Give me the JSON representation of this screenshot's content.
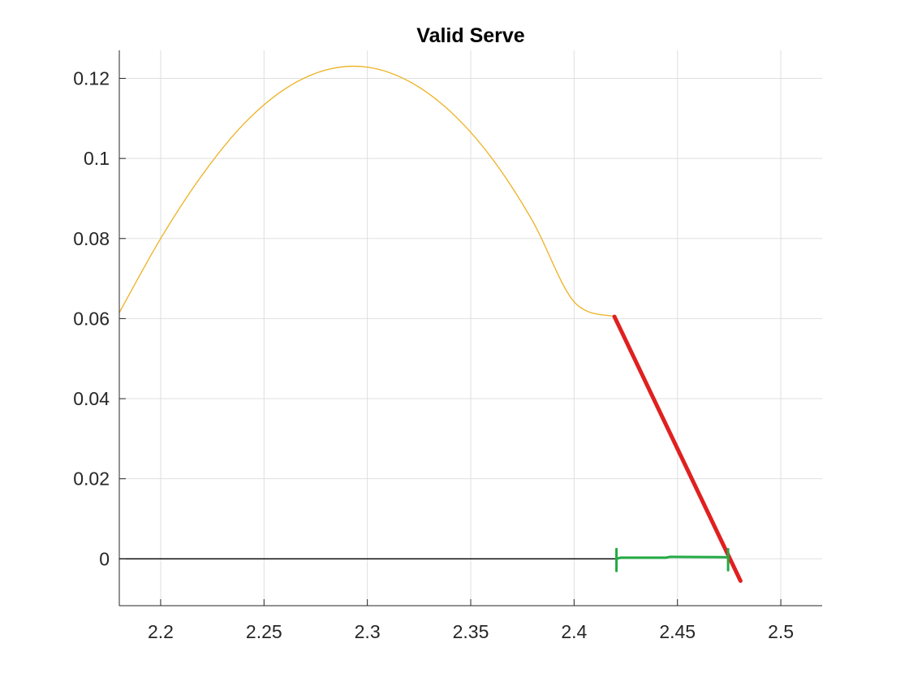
{
  "chart_data": {
    "type": "line",
    "title": "Valid Serve",
    "xlabel": "",
    "ylabel": "",
    "xlim": [
      2.18,
      2.52
    ],
    "ylim": [
      -0.0117,
      0.127
    ],
    "grid": true,
    "x_ticks": [
      "2.2",
      "2.25",
      "2.3",
      "2.35",
      "2.4",
      "2.45",
      "2.5"
    ],
    "x_tick_values": [
      2.2,
      2.25,
      2.3,
      2.35,
      2.4,
      2.45,
      2.5
    ],
    "y_ticks": [
      "0",
      "0.02",
      "0.04",
      "0.06",
      "0.08",
      "0.1",
      "0.12"
    ],
    "y_tick_values": [
      0,
      0.02,
      0.04,
      0.06,
      0.08,
      0.1,
      0.12
    ],
    "series": [
      {
        "color": "#EDB120",
        "style": "thin-line",
        "x": [
          2.18,
          2.2,
          2.22,
          2.24,
          2.26,
          2.28,
          2.3,
          2.32,
          2.34,
          2.36,
          2.38,
          2.4,
          2.42
        ],
        "y": [
          0.0615,
          0.08,
          0.0958,
          0.1085,
          0.1173,
          0.1221,
          0.1228,
          0.1193,
          0.1118,
          0.1002,
          0.0843,
          0.0642,
          0.0605
        ]
      },
      {
        "color": "#E02020",
        "style": "thick-line",
        "x": [
          2.4195,
          2.4805
        ],
        "y": [
          0.0605,
          -0.0055
        ]
      },
      {
        "color": "#000000",
        "style": "thin-line",
        "x": [
          2.18,
          2.42
        ],
        "y": [
          0.0,
          0.0
        ]
      },
      {
        "color": "#22AA44",
        "style": "annotation",
        "x": [
          2.4205,
          2.4225,
          2.4255,
          2.4445,
          2.4465,
          2.4745
        ],
        "y": [
          0.0,
          0.0003,
          0.0003,
          0.0003,
          0.0005,
          0.0004
        ]
      }
    ]
  },
  "colors": {
    "axis": "#262626",
    "grid": "#DFDFDF",
    "background": "#FFFFFF"
  }
}
